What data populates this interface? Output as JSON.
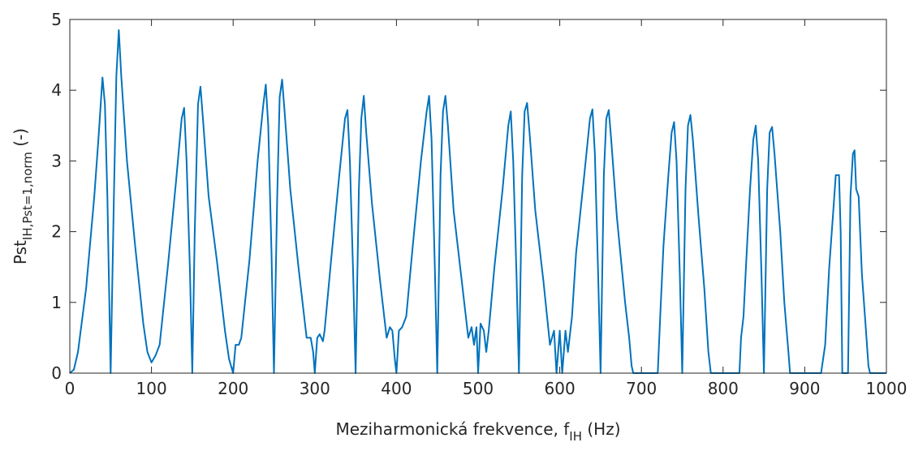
{
  "chart_data": {
    "type": "line",
    "xlabel": {
      "main": "Meziharmonická frekvence, f",
      "sub": "IH",
      "suffix": " (Hz)"
    },
    "ylabel": {
      "main": "Pst",
      "sub": "IH,Pst=1,norm",
      "suffix": " (-)"
    },
    "xlim": [
      0,
      1000
    ],
    "xticks": [
      0,
      100,
      200,
      300,
      400,
      500,
      600,
      700,
      800,
      900,
      1000
    ],
    "ylim": [
      0,
      5
    ],
    "yticks": [
      0,
      1,
      2,
      3,
      4,
      5
    ],
    "series": [
      {
        "color": "#0072bd",
        "x": [
          0,
          5,
          10,
          20,
          30,
          35,
          40,
          43,
          46,
          50,
          54,
          57,
          60,
          63,
          70,
          80,
          90,
          95,
          100,
          105,
          110,
          120,
          130,
          137,
          140,
          143,
          147,
          150,
          153,
          157,
          160,
          163,
          170,
          180,
          190,
          195,
          200,
          203,
          207,
          210,
          220,
          230,
          237,
          240,
          243,
          247,
          250,
          254,
          257,
          260,
          263,
          270,
          280,
          290,
          295,
          298,
          300,
          303,
          306,
          310,
          312,
          320,
          330,
          337,
          340,
          343,
          347,
          350,
          354,
          357,
          360,
          363,
          370,
          380,
          388,
          392,
          395,
          398,
          400,
          403,
          407,
          412,
          420,
          430,
          437,
          440,
          443,
          447,
          450,
          454,
          457,
          460,
          463,
          470,
          480,
          488,
          492,
          495,
          498,
          500,
          503,
          507,
          510,
          513,
          520,
          530,
          537,
          540,
          543,
          547,
          550,
          554,
          557,
          560,
          563,
          570,
          580,
          588,
          593,
          596,
          600,
          603,
          607,
          610,
          615,
          620,
          630,
          637,
          640,
          643,
          647,
          650,
          654,
          657,
          660,
          663,
          670,
          680,
          685,
          688,
          690,
          720,
          723,
          727,
          733,
          737,
          740,
          743,
          747,
          750,
          754,
          757,
          760,
          763,
          770,
          777,
          782,
          785,
          820,
          822,
          825,
          828,
          833,
          837,
          840,
          843,
          847,
          850,
          854,
          857,
          860,
          863,
          870,
          875,
          880,
          882,
          920,
          925,
          930,
          935,
          938,
          942,
          944,
          946,
          953,
          956,
          959,
          961,
          963,
          966,
          970,
          975,
          978,
          980,
          1000
        ],
        "values": [
          0,
          0.05,
          0.3,
          1.2,
          2.5,
          3.3,
          4.18,
          3.8,
          2.5,
          0,
          2.5,
          4.2,
          4.85,
          4.2,
          3.0,
          1.8,
          0.7,
          0.3,
          0.15,
          0.25,
          0.4,
          1.5,
          2.7,
          3.6,
          3.75,
          3.0,
          1.5,
          0,
          2.0,
          3.8,
          4.05,
          3.6,
          2.5,
          1.6,
          0.6,
          0.2,
          0,
          0.4,
          0.4,
          0.5,
          1.6,
          3.0,
          3.8,
          4.08,
          3.5,
          1.7,
          0,
          2.5,
          3.9,
          4.15,
          3.7,
          2.6,
          1.5,
          0.5,
          0.5,
          0.3,
          0,
          0.5,
          0.55,
          0.45,
          0.6,
          1.6,
          2.8,
          3.6,
          3.72,
          3.0,
          1.4,
          0,
          2.6,
          3.6,
          3.92,
          3.4,
          2.4,
          1.3,
          0.5,
          0.65,
          0.6,
          0.2,
          0,
          0.6,
          0.65,
          0.8,
          1.8,
          3.0,
          3.7,
          3.92,
          3.3,
          1.5,
          0,
          2.8,
          3.7,
          3.92,
          3.5,
          2.3,
          1.3,
          0.5,
          0.65,
          0.4,
          0.65,
          0,
          0.7,
          0.6,
          0.3,
          0.6,
          1.5,
          2.6,
          3.5,
          3.7,
          3.0,
          1.4,
          0,
          2.8,
          3.7,
          3.82,
          3.4,
          2.3,
          1.3,
          0.4,
          0.6,
          0,
          0.6,
          0,
          0.6,
          0.3,
          0.8,
          1.7,
          2.8,
          3.6,
          3.73,
          3.1,
          1.4,
          0,
          2.8,
          3.6,
          3.72,
          3.3,
          2.2,
          1.0,
          0.5,
          0.1,
          0,
          0,
          0.8,
          1.8,
          2.8,
          3.4,
          3.55,
          3.0,
          1.4,
          0,
          2.6,
          3.5,
          3.65,
          3.3,
          2.2,
          1.2,
          0.3,
          0,
          0,
          0.5,
          0.8,
          1.5,
          2.6,
          3.3,
          3.5,
          3.0,
          1.4,
          0,
          2.6,
          3.4,
          3.48,
          3.1,
          2.0,
          1.0,
          0.3,
          0,
          0,
          0.4,
          1.5,
          2.3,
          2.8,
          2.8,
          2.0,
          0,
          0,
          2.5,
          3.1,
          3.15,
          2.6,
          2.5,
          1.4,
          0.6,
          0.1,
          0,
          0
        ]
      }
    ]
  }
}
